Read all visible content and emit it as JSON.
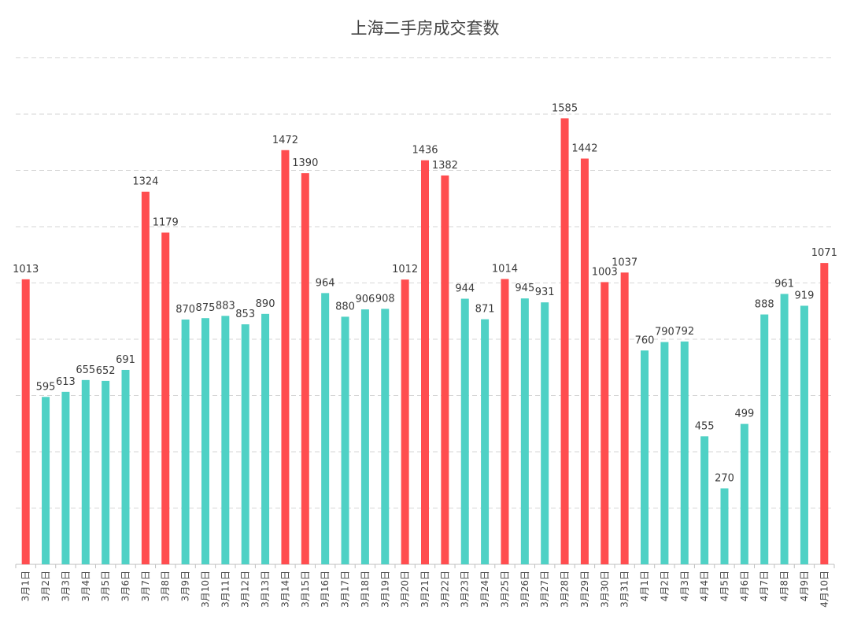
{
  "chart_data": {
    "type": "bar",
    "title": "上海二手房成交套数",
    "xlabel": "",
    "ylabel": "",
    "ylim": [
      0,
      1600
    ],
    "grid": true,
    "categories": [
      "3月1日",
      "3月2日",
      "3月3日",
      "3月4日",
      "3月5日",
      "3月6日",
      "3月7日",
      "3月8日",
      "3月9日",
      "3月10日",
      "3月11日",
      "3月12日",
      "3月13日",
      "3月14日",
      "3月15日",
      "3月16日",
      "3月17日",
      "3月18日",
      "3月19日",
      "3月20日",
      "3月21日",
      "3月22日",
      "3月23日",
      "3月24日",
      "3月25日",
      "3月26日",
      "3月27日",
      "3月28日",
      "3月29日",
      "3月30日",
      "3月31日",
      "4月1日",
      "4月2日",
      "4月3日",
      "4月4日",
      "4月5日",
      "4月6日",
      "4月7日",
      "4月8日",
      "4月9日",
      "4月10日"
    ],
    "values": [
      1013,
      595,
      613,
      655,
      652,
      691,
      1324,
      1179,
      870,
      875,
      883,
      853,
      890,
      1472,
      1390,
      964,
      880,
      906,
      908,
      1012,
      1436,
      1382,
      944,
      871,
      1014,
      945,
      931,
      1585,
      1442,
      1003,
      1037,
      760,
      790,
      792,
      455,
      270,
      499,
      888,
      961,
      919,
      1071
    ],
    "highlight_threshold": 1000,
    "colors": {
      "above": "#ff4d4f",
      "below": "#4fd1c5"
    }
  }
}
